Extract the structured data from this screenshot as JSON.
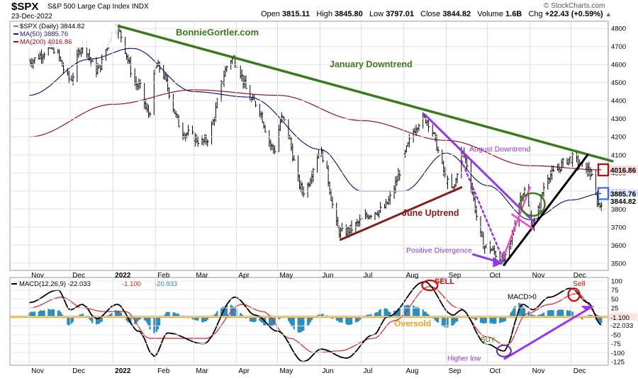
{
  "header": {
    "symbol": "$SPX",
    "description": "S&P 500 Large Cap Index INDX",
    "date": "23-Dec-2022",
    "open_label": "Open",
    "open": "3815.11",
    "high_label": "High",
    "high": "3845.80",
    "low_label": "Low",
    "low": "3797.01",
    "close_label": "Close",
    "close": "3844.82",
    "volume_label": "Volume",
    "volume": "1.6B",
    "chg_label": "Chg",
    "chg": "+22.43 (+0.59%)",
    "chg_arrow": "▲",
    "copyright": "© StockCharts.com"
  },
  "colors": {
    "price": "#000000",
    "ma50": "#1a1a8c",
    "ma200": "#a01020",
    "green_trend": "#3d7a1e",
    "purple": "#9933ee",
    "magenta": "#ff44cc",
    "brown": "#8b1a1a",
    "orange": "#f0a020",
    "hist": "#2a8fc0",
    "red_marker": "#dd0000",
    "blue_marker": "#3366ff",
    "green_circle": "#3a7d1a"
  },
  "chart_data": [
    {
      "type": "line",
      "panel": "price",
      "legend": {
        "price": "$SPX (Daily) 3844.82",
        "ma50": "MA(50) 3885.76",
        "ma200": "MA(200) 4016.86"
      },
      "ylim": [
        3460,
        4840
      ],
      "yticks": [
        3500,
        3600,
        3700,
        3800,
        3900,
        4000,
        4100,
        4200,
        4300,
        4400,
        4500,
        4600,
        4700,
        4800
      ],
      "x_months": [
        "Nov",
        "Dec",
        "2022",
        "Feb",
        "Mar",
        "Apr",
        "May",
        "Jun",
        "Jul",
        "Aug",
        "Sep",
        "Oct",
        "Nov",
        "Dec"
      ],
      "price_keypoints": [
        [
          "2021-11-01",
          4620
        ],
        [
          "2021-11-18",
          4690
        ],
        [
          "2021-12-01",
          4520
        ],
        [
          "2021-12-10",
          4710
        ],
        [
          "2021-12-20",
          4570
        ],
        [
          "2022-01-03",
          4800
        ],
        [
          "2022-01-20",
          4480
        ],
        [
          "2022-01-27",
          4330
        ],
        [
          "2022-02-02",
          4590
        ],
        [
          "2022-02-23",
          4220
        ],
        [
          "2022-03-08",
          4170
        ],
        [
          "2022-03-29",
          4630
        ],
        [
          "2022-04-14",
          4390
        ],
        [
          "2022-04-29",
          4130
        ],
        [
          "2022-05-04",
          4300
        ],
        [
          "2022-05-20",
          3900
        ],
        [
          "2022-06-01",
          4110
        ],
        [
          "2022-06-16",
          3670
        ],
        [
          "2022-07-14",
          3790
        ],
        [
          "2022-08-16",
          4300
        ],
        [
          "2022-09-06",
          3910
        ],
        [
          "2022-09-12",
          4110
        ],
        [
          "2022-09-30",
          3590
        ],
        [
          "2022-10-13",
          3520
        ],
        [
          "2022-10-28",
          3900
        ],
        [
          "2022-11-03",
          3720
        ],
        [
          "2022-11-15",
          3990
        ],
        [
          "2022-12-01",
          4080
        ],
        [
          "2022-12-13",
          4019
        ],
        [
          "2022-12-22",
          3822
        ],
        [
          "2022-12-23",
          3845
        ]
      ],
      "ma50_keypoints": [
        [
          "2021-11-01",
          4430
        ],
        [
          "2021-12-15",
          4630
        ],
        [
          "2022-01-15",
          4690
        ],
        [
          "2022-03-01",
          4450
        ],
        [
          "2022-04-10",
          4420
        ],
        [
          "2022-06-01",
          4130
        ],
        [
          "2022-07-01",
          3900
        ],
        [
          "2022-08-01",
          3900
        ],
        [
          "2022-09-01",
          4110
        ],
        [
          "2022-10-01",
          3930
        ],
        [
          "2022-11-01",
          3740
        ],
        [
          "2022-12-01",
          3850
        ],
        [
          "2022-12-23",
          3886
        ]
      ],
      "ma200_keypoints": [
        [
          "2021-11-01",
          4200
        ],
        [
          "2022-01-01",
          4380
        ],
        [
          "2022-03-01",
          4460
        ],
        [
          "2022-05-01",
          4430
        ],
        [
          "2022-07-01",
          4290
        ],
        [
          "2022-09-01",
          4180
        ],
        [
          "2022-11-01",
          4040
        ],
        [
          "2022-12-23",
          4017
        ]
      ],
      "price_label": "3844.82",
      "ma50_label": "3885.76",
      "ma200_label": "4016.86",
      "annotations": [
        {
          "text": "BonnieGortler.com",
          "color": "#3d7a1e"
        },
        {
          "text": "January Downtrend",
          "color": "#3d7a1e"
        },
        {
          "text": "August Downtrend",
          "color": "#9933ee"
        },
        {
          "text": "June Uptrend",
          "color": "#8b1a1a"
        },
        {
          "text": "Positive Divergence",
          "color": "#9933ee"
        }
      ],
      "trendlines": [
        {
          "name": "january-downtrend",
          "from": [
            "2022-01-03",
            4818
          ],
          "to": [
            "2022-12-31",
            4065
          ]
        },
        {
          "name": "august-downtrend",
          "from": [
            "2022-08-16",
            4325
          ],
          "to": [
            "2022-11-05",
            3720
          ]
        },
        {
          "name": "june-uptrend",
          "from": [
            "2022-06-16",
            3630
          ],
          "to": [
            "2022-09-12",
            3920
          ]
        },
        {
          "name": "october-uptrend",
          "from": [
            "2022-10-13",
            3490
          ],
          "to": [
            "2022-12-13",
            4100
          ]
        },
        {
          "name": "positive-divergence",
          "from": [
            "2022-09-12",
            4070
          ],
          "to": [
            "2022-10-13",
            3510
          ]
        },
        {
          "name": "magenta-line-1",
          "from": [
            "2022-10-13",
            3540
          ],
          "to": [
            "2022-11-01",
            3920
          ]
        },
        {
          "name": "magenta-line-2",
          "from": [
            "2022-10-19",
            3770
          ],
          "to": [
            "2022-11-03",
            3690
          ]
        }
      ]
    },
    {
      "type": "line",
      "panel": "macd",
      "legend": {
        "macd": "MACD(12,26,9) -22.033",
        "signal": "-1.100",
        "hist": "-20.933"
      },
      "ylim": [
        -135,
        110
      ],
      "yticks": [
        -125,
        -100,
        -75,
        -50,
        -25,
        0,
        25,
        50,
        75,
        100
      ],
      "x_months": [
        "Nov",
        "Dec",
        "2022",
        "Feb",
        "Mar",
        "Apr",
        "May",
        "Jun",
        "Jul",
        "Aug",
        "Sep",
        "Oct",
        "Nov",
        "Dec"
      ],
      "macd_keypoints": [
        [
          "2021-11-01",
          40
        ],
        [
          "2021-11-22",
          75
        ],
        [
          "2021-12-01",
          20
        ],
        [
          "2021-12-10",
          35
        ],
        [
          "2021-12-20",
          -5
        ],
        [
          "2022-01-04",
          35
        ],
        [
          "2022-01-20",
          -40
        ],
        [
          "2022-01-31",
          -110
        ],
        [
          "2022-02-10",
          -45
        ],
        [
          "2022-03-08",
          -75
        ],
        [
          "2022-03-31",
          55
        ],
        [
          "2022-04-15",
          5
        ],
        [
          "2022-05-01",
          -40
        ],
        [
          "2022-05-20",
          -125
        ],
        [
          "2022-06-02",
          -90
        ],
        [
          "2022-06-20",
          -115
        ],
        [
          "2022-07-10",
          -50
        ],
        [
          "2022-07-20",
          0
        ],
        [
          "2022-08-16",
          98
        ],
        [
          "2022-09-06",
          5
        ],
        [
          "2022-09-12",
          20
        ],
        [
          "2022-09-30",
          -75
        ],
        [
          "2022-10-13",
          -95
        ],
        [
          "2022-10-27",
          35
        ],
        [
          "2022-11-03",
          20
        ],
        [
          "2022-11-15",
          55
        ],
        [
          "2022-12-01",
          80
        ],
        [
          "2022-12-13",
          40
        ],
        [
          "2022-12-23",
          -22
        ]
      ],
      "signal_keypoints": [
        [
          "2021-11-01",
          25
        ],
        [
          "2021-11-25",
          55
        ],
        [
          "2021-12-10",
          25
        ],
        [
          "2021-12-25",
          15
        ],
        [
          "2022-01-10",
          15
        ],
        [
          "2022-01-28",
          -60
        ],
        [
          "2022-02-15",
          -60
        ],
        [
          "2022-03-10",
          -60
        ],
        [
          "2022-04-05",
          35
        ],
        [
          "2022-04-20",
          15
        ],
        [
          "2022-05-10",
          -60
        ],
        [
          "2022-05-28",
          -100
        ],
        [
          "2022-06-15",
          -95
        ],
        [
          "2022-07-10",
          -60
        ],
        [
          "2022-07-25",
          -10
        ],
        [
          "2022-08-20",
          85
        ],
        [
          "2022-09-10",
          25
        ],
        [
          "2022-09-30",
          -55
        ],
        [
          "2022-10-15",
          -80
        ],
        [
          "2022-10-30",
          10
        ],
        [
          "2022-11-15",
          35
        ],
        [
          "2022-12-05",
          65
        ],
        [
          "2022-12-23",
          -1
        ]
      ],
      "annotations": [
        {
          "text": "SELL",
          "color": "#dd0000"
        },
        {
          "text": "Sell",
          "color": "#dd0000"
        },
        {
          "text": "MACD>0",
          "color": "#000000"
        },
        {
          "text": "Oversold",
          "color": "#f0a020"
        },
        {
          "text": "BUY",
          "color": "#3a7d1a"
        },
        {
          "text": "Higher low",
          "color": "#9933ee"
        }
      ],
      "oversold_level": 0,
      "macd_label": "-22.033",
      "signal_label": "-1.100",
      "trendlines": [
        {
          "name": "higher-low-line",
          "from": [
            "2022-10-13",
            -118
          ],
          "to": [
            "2022-12-16",
            28
          ]
        }
      ]
    }
  ]
}
